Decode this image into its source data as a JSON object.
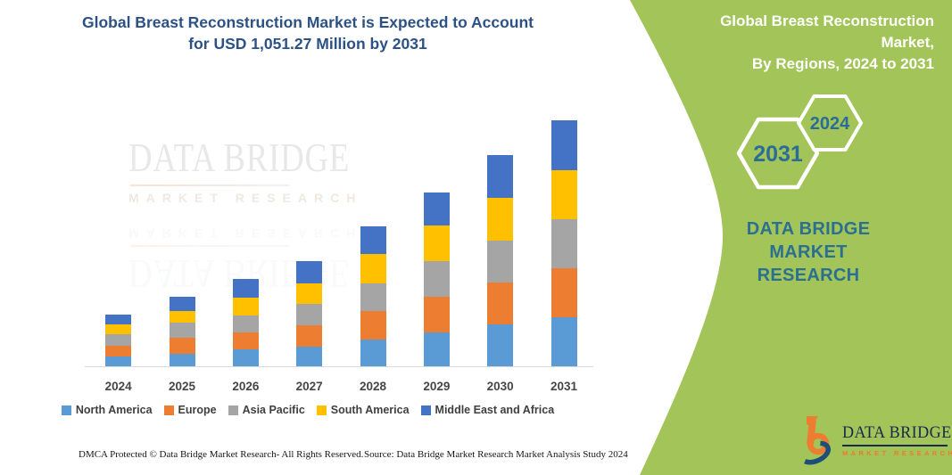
{
  "chart": {
    "title_line1": "Global Breast Reconstruction Market is Expected to Account",
    "title_line2": "for USD 1,051.27 Million by 2031"
  },
  "panel": {
    "title_line1": "Global Breast Reconstruction Market,",
    "title_line2": "By Regions, 2024 to 2031",
    "hex_large_label": "2031",
    "hex_small_label": "2024",
    "brand_line1": "DATA BRIDGE MARKET",
    "brand_line2": "RESEARCH",
    "background_color": "#a3c459",
    "text_color": "#2a6d96"
  },
  "logo": {
    "name": "DATA BRIDGE",
    "tagline": "MARKET RESEARCH",
    "orange": "#ED7D31",
    "navy": "#1F4E79"
  },
  "footer": {
    "left": "DMCA Protected © Data Bridge Market Research-  All Rights Reserved.",
    "right": "Source: Data Bridge Market Research  Market Analysis Study 2024"
  },
  "chart_data": {
    "type": "bar",
    "stacked": true,
    "title": "Global Breast Reconstruction Market is Expected to Account for USD 1,051.27 Million by 2031",
    "categories": [
      "2024",
      "2025",
      "2026",
      "2027",
      "2028",
      "2029",
      "2030",
      "2031"
    ],
    "series": [
      {
        "name": "North America",
        "color": "#5B9BD5",
        "values": [
          43.1,
          53.4,
          72.4,
          83.9,
          112.9,
          144.9,
          177.7,
          209.7
        ]
      },
      {
        "name": "Europe",
        "color": "#ED7D31",
        "values": [
          44.6,
          69.8,
          72.4,
          90.0,
          123.6,
          152.5,
          180.7,
          208.6
        ]
      },
      {
        "name": "Asia Pacific",
        "color": "#A5A5A5",
        "values": [
          48.4,
          62.2,
          73.6,
          91.5,
          119.3,
          152.5,
          177.7,
          209.7
        ]
      },
      {
        "name": "South America",
        "color": "#FFC000",
        "values": [
          41.9,
          52.2,
          75.1,
          89.2,
          125.8,
          153.7,
          184.6,
          209.7
        ]
      },
      {
        "name": "Middle East and Africa",
        "color": "#4472C4",
        "values": [
          44.6,
          58.3,
          80.1,
          95.3,
          117.1,
          141.1,
          181.5,
          213.5
        ]
      }
    ],
    "totals": [
      222.6,
      295.9,
      373.6,
      449.9,
      598.7,
      744.7,
      902.2,
      1051.27
    ],
    "value_unit": "USD Million",
    "xlabel": "",
    "ylabel": "",
    "ylim": [
      0,
      1100
    ],
    "y_axis_visible": false,
    "gridlines": false,
    "legend_position": "bottom",
    "stack_order": "first series at bottom"
  }
}
